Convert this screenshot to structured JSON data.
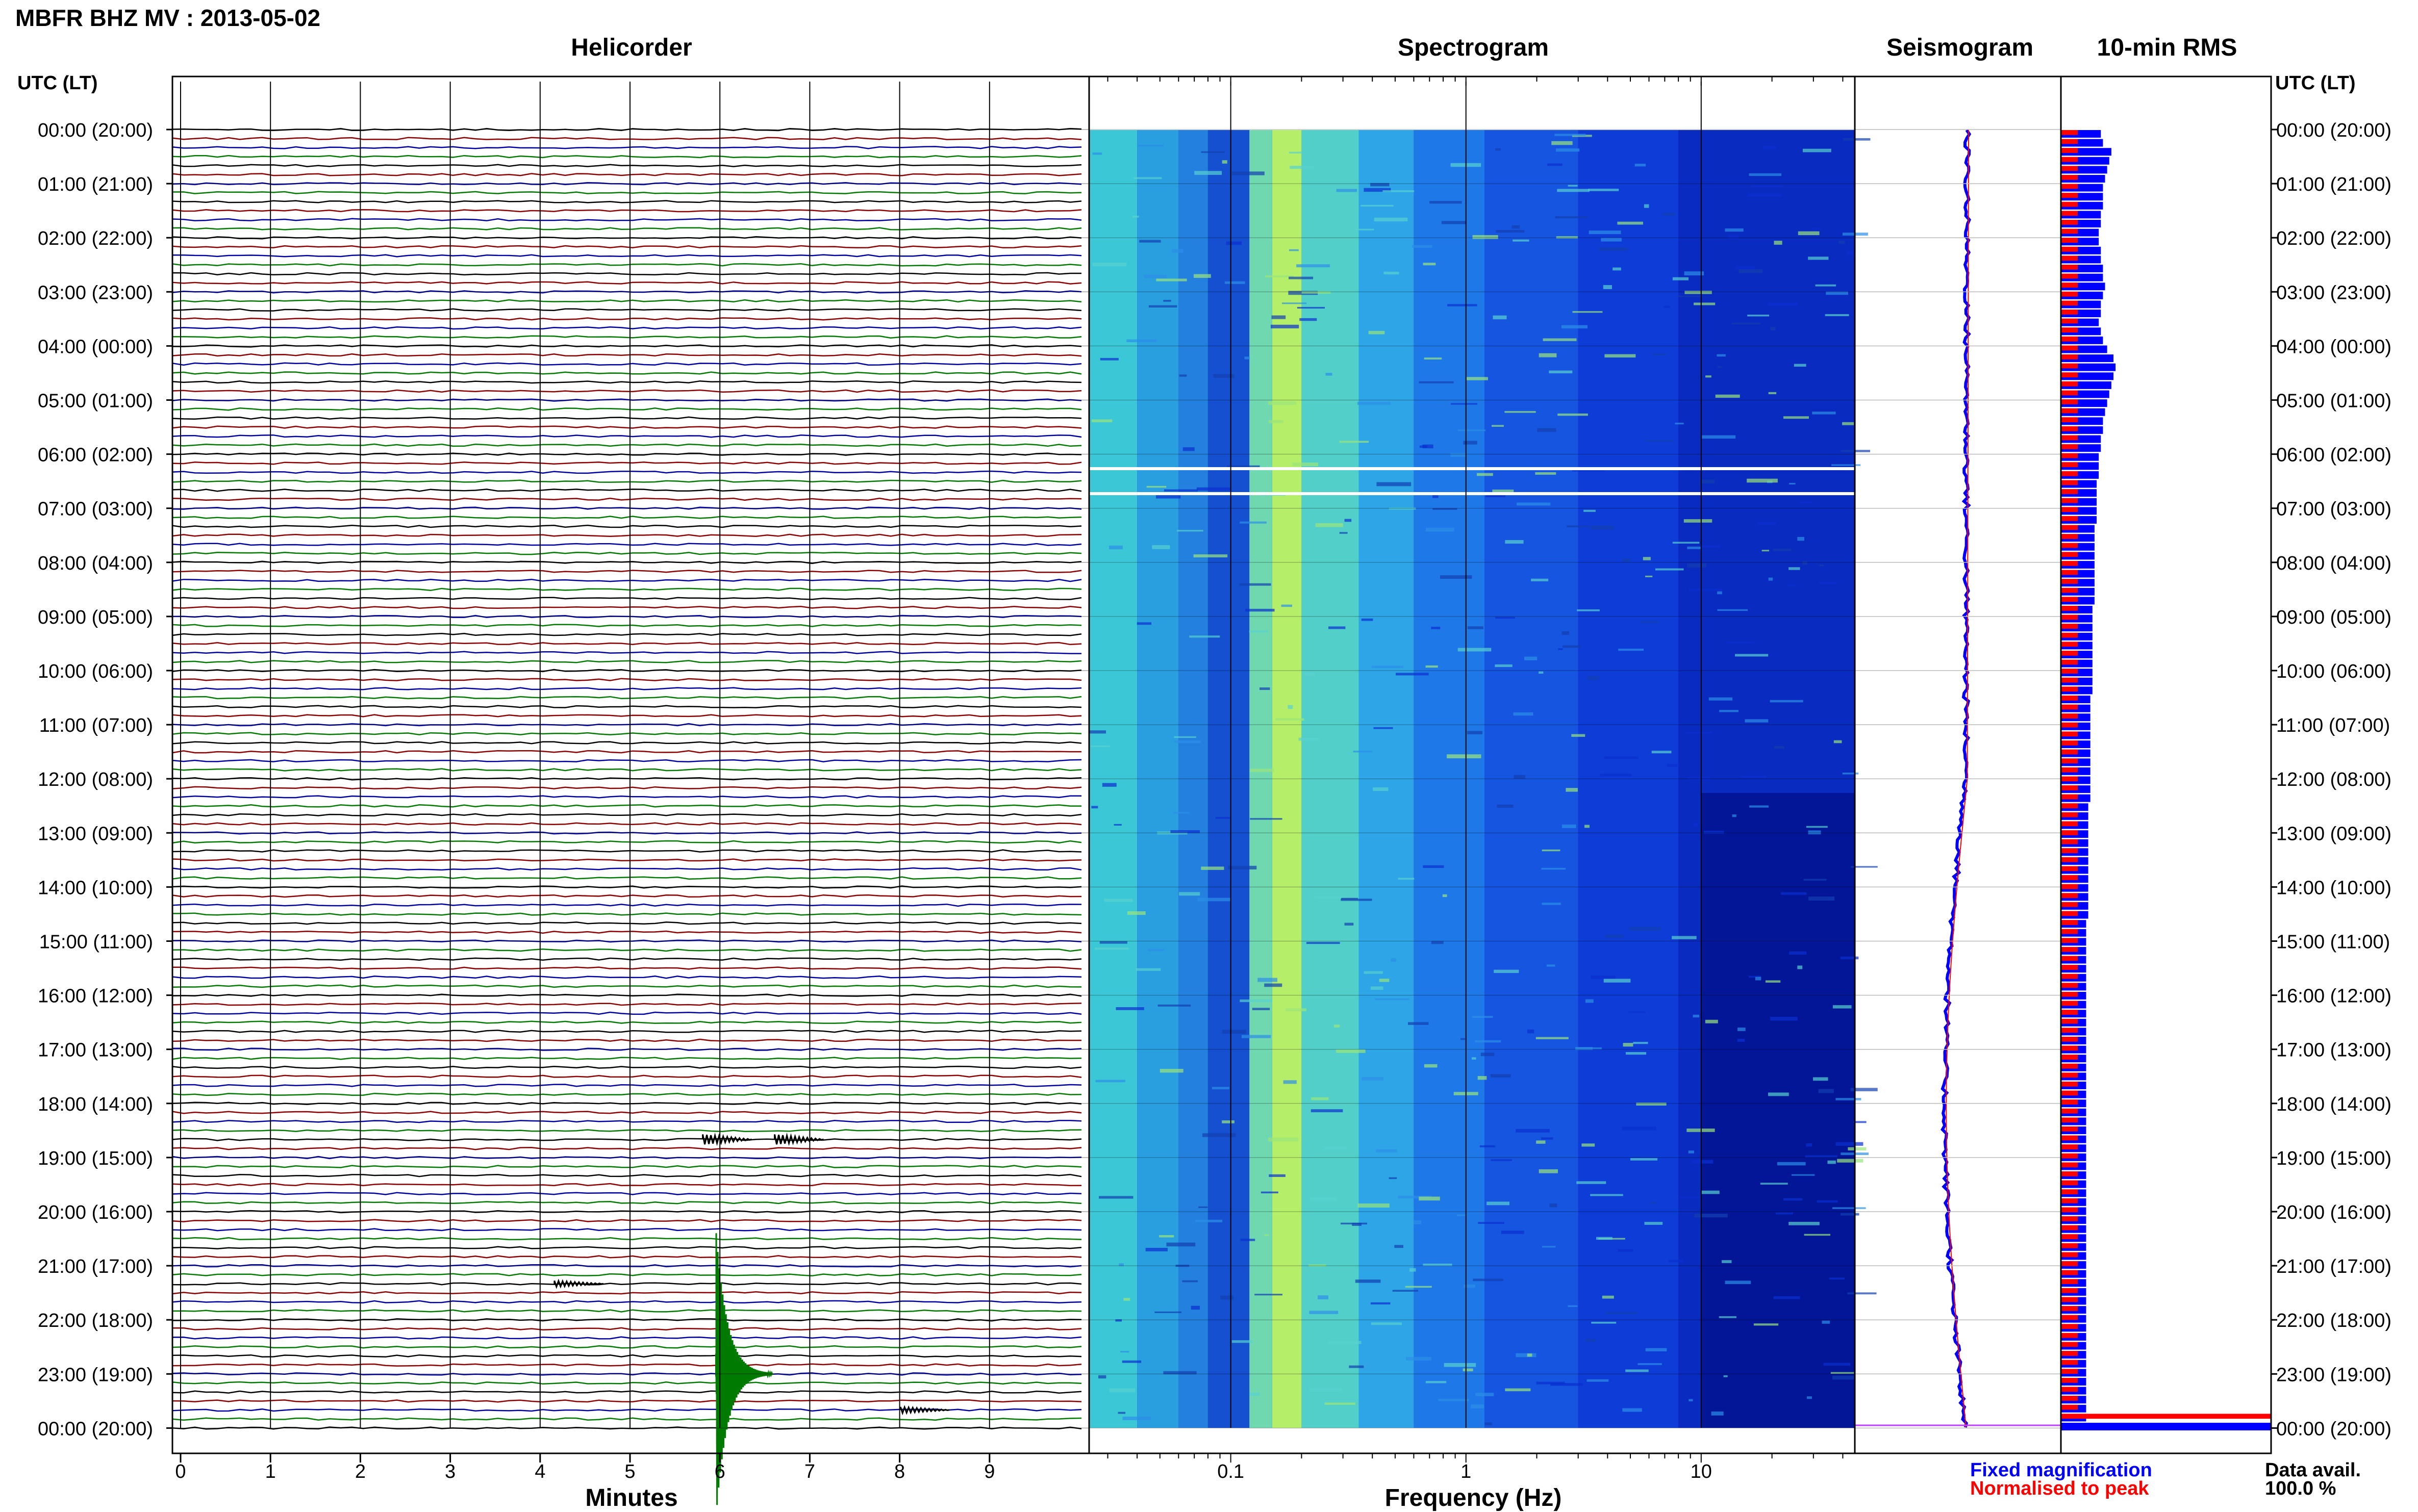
{
  "title": "MBFR BHZ MV : 2013-05-02",
  "panels": {
    "helicorder": "Helicorder",
    "spectrogram": "Spectrogram",
    "seismogram": "Seismogram",
    "rms": "10-min RMS"
  },
  "time_axis_label": "UTC (LT)",
  "time_labels": [
    "00:00 (20:00)",
    "01:00 (21:00)",
    "02:00 (22:00)",
    "03:00 (23:00)",
    "04:00 (00:00)",
    "05:00 (01:00)",
    "06:00 (02:00)",
    "07:00 (03:00)",
    "08:00 (04:00)",
    "09:00 (05:00)",
    "10:00 (06:00)",
    "11:00 (07:00)",
    "12:00 (08:00)",
    "13:00 (09:00)",
    "14:00 (10:00)",
    "15:00 (11:00)",
    "16:00 (12:00)",
    "17:00 (13:00)",
    "18:00 (14:00)",
    "19:00 (15:00)",
    "20:00 (16:00)",
    "21:00 (17:00)",
    "22:00 (18:00)",
    "23:00 (19:00)",
    "00:00 (20:00)"
  ],
  "x_axis": {
    "helicorder_label": "Minutes",
    "helicorder_ticks": [
      "0",
      "1",
      "2",
      "3",
      "4",
      "5",
      "6",
      "7",
      "8",
      "9"
    ],
    "spectrogram_label": "Frequency (Hz)",
    "spectrogram_ticks": [
      "0.1",
      "1",
      "10"
    ]
  },
  "legend": {
    "fixed": "Fixed magnification",
    "normalised": "Normalised to peak"
  },
  "data_avail_label": "Data avail.",
  "data_avail_value": "100.0 %",
  "colors": {
    "trace_colors": [
      "#000000",
      "#8b0000",
      "#0000a0",
      "#007a00"
    ],
    "fixed": "#0000ff",
    "normalised": "#ff0000"
  },
  "chart_data": [
    {
      "type": "line",
      "panel": "Helicorder",
      "xlabel": "Minutes",
      "xlim": [
        0,
        10
      ],
      "rows_per_hour": 6,
      "hours": 24,
      "events": [
        {
          "row": 138,
          "minute": 6.05,
          "amplitude": "large",
          "color": "#007a00"
        },
        {
          "row": 112,
          "minute": 5.9,
          "amplitude": "medium",
          "color": "#000000"
        },
        {
          "row": 112,
          "minute": 6.7,
          "amplitude": "medium",
          "color": "#000000"
        },
        {
          "row": 128,
          "minute": 4.25,
          "amplitude": "small",
          "color": "#000000"
        },
        {
          "row": 142,
          "minute": 8.1,
          "amplitude": "small",
          "color": "#000000"
        }
      ]
    },
    {
      "type": "heatmap",
      "panel": "Spectrogram",
      "xlabel": "Frequency (Hz)",
      "xscale": "log",
      "xlim": [
        0.025,
        45
      ],
      "colormap": "jet-like (dark blue to yellow)",
      "peak_band_hz": [
        0.15,
        0.35
      ]
    },
    {
      "type": "line",
      "panel": "Seismogram",
      "series": [
        {
          "name": "Fixed magnification",
          "color": "#0000ff"
        },
        {
          "name": "Normalised to peak",
          "color": "#ff0000"
        }
      ]
    },
    {
      "type": "bar",
      "panel": "10-min RMS",
      "orientation": "horizontal",
      "series": [
        {
          "name": "Fixed magnification",
          "color": "#0000ff",
          "values": [
            0.19,
            0.2,
            0.24,
            0.23,
            0.22,
            0.21,
            0.2,
            0.2,
            0.2,
            0.19,
            0.19,
            0.18,
            0.18,
            0.19,
            0.19,
            0.2,
            0.2,
            0.21,
            0.2,
            0.19,
            0.19,
            0.18,
            0.19,
            0.2,
            0.22,
            0.25,
            0.26,
            0.25,
            0.24,
            0.23,
            0.22,
            0.21,
            0.2,
            0.2,
            0.19,
            0.19,
            0.18,
            0.18,
            0.18,
            0.17,
            0.17,
            0.17,
            0.17,
            0.17,
            0.16,
            0.16,
            0.16,
            0.16,
            0.16,
            0.16,
            0.16,
            0.16,
            0.16,
            0.15,
            0.15,
            0.15,
            0.15,
            0.15,
            0.15,
            0.15,
            0.15,
            0.15,
            0.15,
            0.14,
            0.14,
            0.14,
            0.14,
            0.14,
            0.14,
            0.14,
            0.14,
            0.14,
            0.14,
            0.14,
            0.14,
            0.13,
            0.13,
            0.13,
            0.13,
            0.13,
            0.13,
            0.13,
            0.13,
            0.13,
            0.13,
            0.13,
            0.13,
            0.13,
            0.12,
            0.12,
            0.12,
            0.12,
            0.12,
            0.12,
            0.12,
            0.12,
            0.12,
            0.12,
            0.12,
            0.12,
            0.12,
            0.12,
            0.12,
            0.12,
            0.12,
            0.12,
            0.12,
            0.12,
            0.12,
            0.12,
            0.12,
            0.12,
            0.12,
            0.12,
            0.12,
            0.12,
            0.12,
            0.12,
            0.12,
            0.12,
            0.12,
            0.12,
            0.12,
            0.12,
            0.12,
            0.12,
            0.12,
            0.12,
            0.12,
            0.12,
            0.12,
            0.12,
            0.12,
            0.12,
            0.12,
            0.12,
            0.12,
            0.12,
            0.12,
            0.12,
            0.12,
            0.12,
            0.12,
            0.12,
            1.0
          ]
        },
        {
          "name": "Normalised to peak",
          "color": "#ff0000",
          "values": [
            0.08,
            0.08,
            0.08,
            0.08,
            0.08,
            0.08,
            0.08,
            0.08,
            0.08,
            0.08,
            0.08,
            0.08,
            0.08,
            0.08,
            0.08,
            0.08,
            0.08,
            0.08,
            0.08,
            0.08,
            0.08,
            0.08,
            0.08,
            0.08,
            0.08,
            0.08,
            0.08,
            0.08,
            0.08,
            0.08,
            0.08,
            0.08,
            0.08,
            0.08,
            0.08,
            0.08,
            0.08,
            0.08,
            0.08,
            0.08,
            0.08,
            0.08,
            0.08,
            0.08,
            0.08,
            0.08,
            0.08,
            0.08,
            0.08,
            0.08,
            0.08,
            0.08,
            0.08,
            0.08,
            0.08,
            0.08,
            0.08,
            0.08,
            0.08,
            0.08,
            0.08,
            0.08,
            0.08,
            0.08,
            0.08,
            0.08,
            0.08,
            0.08,
            0.08,
            0.08,
            0.08,
            0.08,
            0.08,
            0.08,
            0.08,
            0.08,
            0.08,
            0.08,
            0.08,
            0.08,
            0.08,
            0.08,
            0.08,
            0.08,
            0.08,
            0.08,
            0.08,
            0.08,
            0.08,
            0.08,
            0.08,
            0.08,
            0.08,
            0.08,
            0.08,
            0.08,
            0.08,
            0.08,
            0.08,
            0.08,
            0.08,
            0.08,
            0.08,
            0.08,
            0.08,
            0.08,
            0.08,
            0.08,
            0.08,
            0.08,
            0.08,
            0.08,
            0.08,
            0.08,
            0.08,
            0.08,
            0.08,
            0.08,
            0.08,
            0.08,
            0.08,
            0.08,
            0.08,
            0.08,
            0.08,
            0.08,
            0.08,
            0.08,
            0.08,
            0.08,
            0.08,
            0.08,
            0.08,
            0.08,
            0.08,
            0.08,
            0.08,
            0.08,
            0.08,
            0.08,
            0.08,
            0.08,
            0.08,
            1.0
          ]
        }
      ]
    }
  ]
}
